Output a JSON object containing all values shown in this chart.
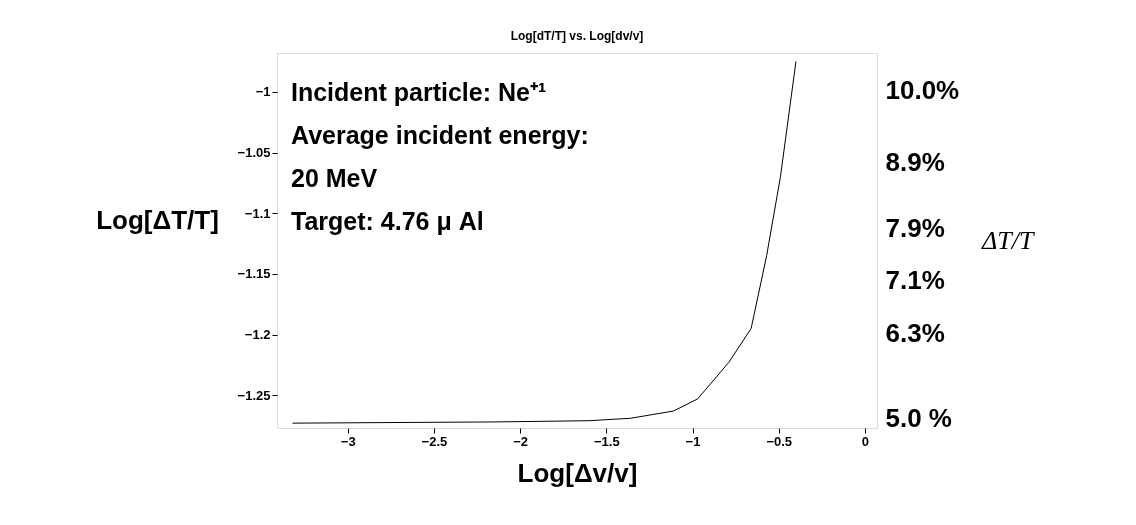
{
  "chart_data": {
    "type": "line",
    "title": "Log[dT/T] vs. Log[dv/v]",
    "xlabel": "Log[Δv/v]",
    "ylabel": "Log[ΔT/T]",
    "y2label": "ΔT/T",
    "x": [
      -3.32,
      -2.15,
      -1.6,
      -1.36,
      -1.11,
      -0.97,
      -0.79,
      -0.66,
      -0.57,
      -0.49,
      -0.4
    ],
    "series": [
      {
        "color": "#000000",
        "values": [
          -1.273,
          -1.272,
          -1.271,
          -1.269,
          -1.263,
          -1.253,
          -1.223,
          -1.195,
          -1.135,
          -1.07,
          -0.975
        ]
      }
    ],
    "xlim": [
      -3.41,
      0.07
    ],
    "xticks": [
      -3,
      -2.5,
      -2,
      -1.5,
      -1,
      -0.5,
      0
    ],
    "ylim": [
      -1.277,
      -0.968
    ],
    "yticks": [
      -1,
      -1.05,
      -1.1,
      -1.15,
      -1.2,
      -1.25
    ],
    "y2lim": [
      4.85,
      10.58
    ],
    "y2ticks": [
      {
        "value": 10,
        "label": "10.0%"
      },
      {
        "value": 8.9,
        "label": "8.9%"
      },
      {
        "value": 7.9,
        "label": "7.9%"
      },
      {
        "value": 7.1,
        "label": "7.1%"
      },
      {
        "value": 6.3,
        "label": "6.3%"
      },
      {
        "value": 5,
        "label": "5.0 %"
      }
    ],
    "annotations": [
      "Incident particle: Ne⁺¹",
      "Average incident energy:",
      "20 MeV",
      "Target: 4.76 μ Al"
    ],
    "grid": false,
    "marker": "none",
    "line_style": "solid"
  }
}
